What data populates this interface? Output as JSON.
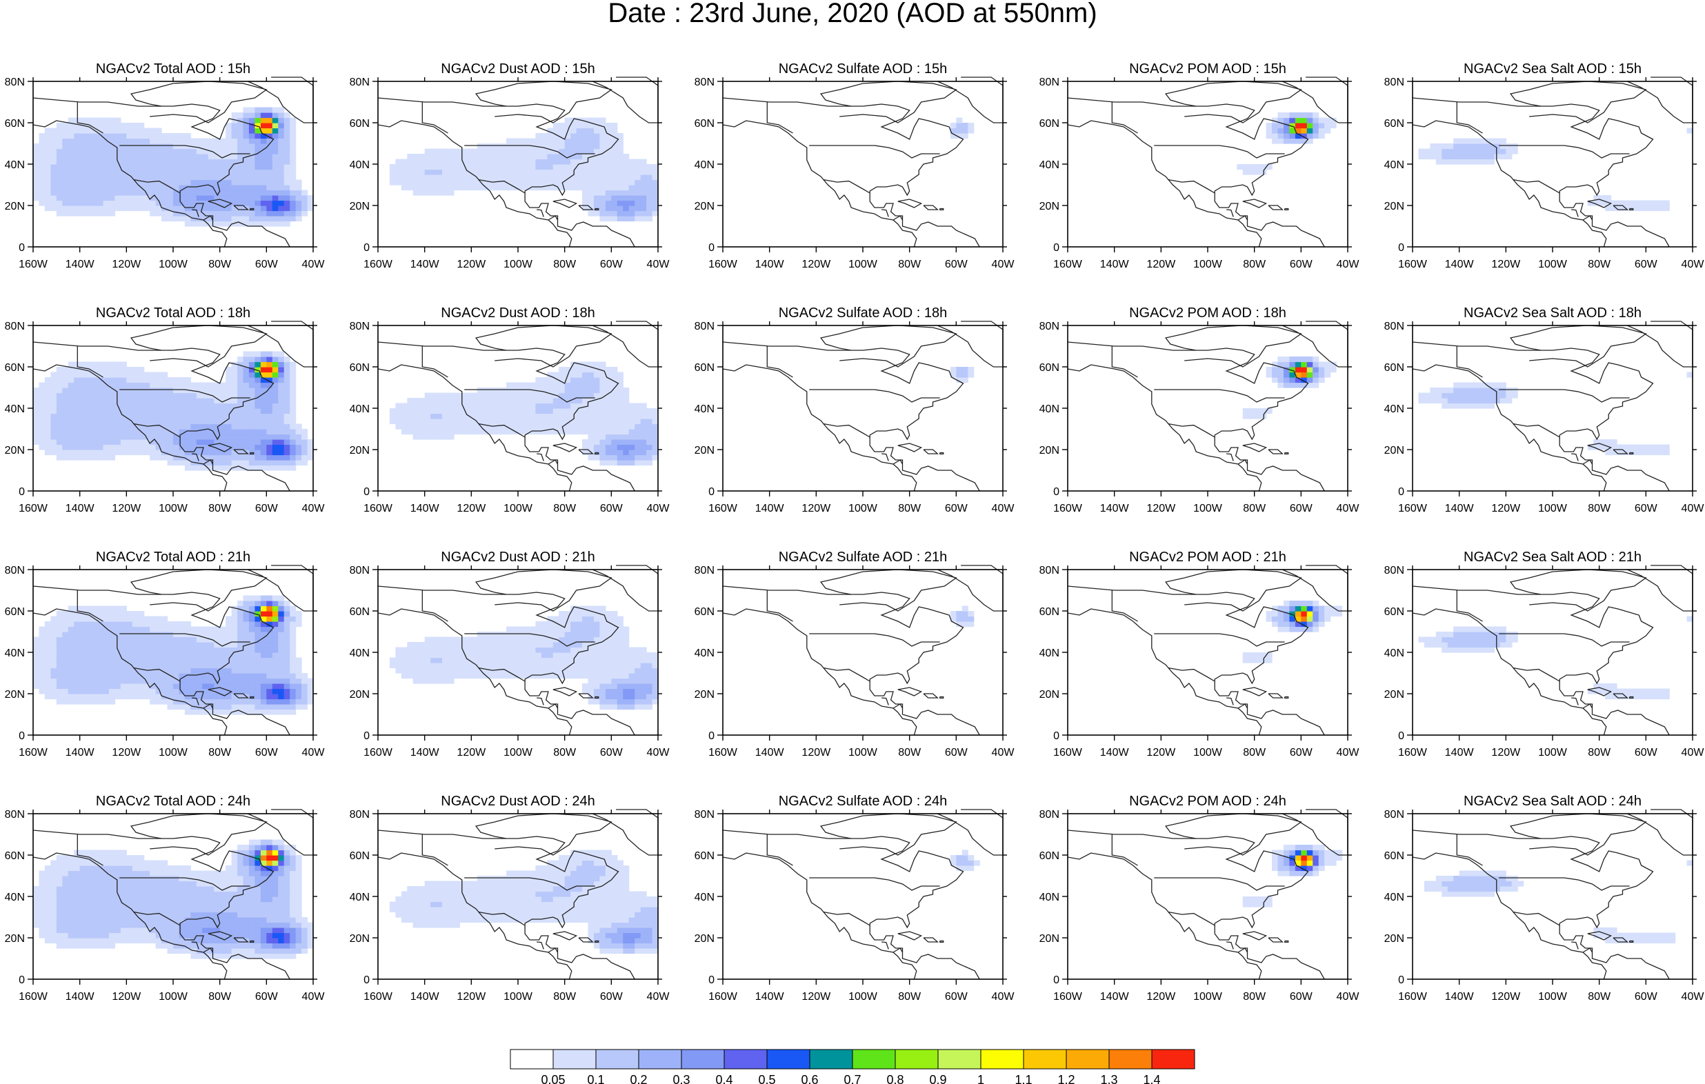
{
  "title": "Date : 23rd June, 2020 (AOD at 550nm)",
  "chart_data": {
    "type": "heatmap",
    "layout": {
      "rows": 4,
      "columns": 5
    },
    "panels": [
      {
        "title": "NGACv2 Total AOD : 15h",
        "species": "total",
        "hour": 15
      },
      {
        "title": "NGACv2 Dust AOD : 15h",
        "species": "dust",
        "hour": 15
      },
      {
        "title": "NGACv2 Sulfate AOD : 15h",
        "species": "sulfate",
        "hour": 15
      },
      {
        "title": "NGACv2 POM AOD : 15h",
        "species": "pom",
        "hour": 15
      },
      {
        "title": "NGACv2 Sea Salt AOD : 15h",
        "species": "seasalt",
        "hour": 15
      },
      {
        "title": "NGACv2 Total AOD : 18h",
        "species": "total",
        "hour": 18
      },
      {
        "title": "NGACv2 Dust AOD : 18h",
        "species": "dust",
        "hour": 18
      },
      {
        "title": "NGACv2 Sulfate AOD : 18h",
        "species": "sulfate",
        "hour": 18
      },
      {
        "title": "NGACv2 POM AOD : 18h",
        "species": "pom",
        "hour": 18
      },
      {
        "title": "NGACv2 Sea Salt AOD : 18h",
        "species": "seasalt",
        "hour": 18
      },
      {
        "title": "NGACv2 Total AOD : 21h",
        "species": "total",
        "hour": 21
      },
      {
        "title": "NGACv2 Dust AOD : 21h",
        "species": "dust",
        "hour": 21
      },
      {
        "title": "NGACv2 Sulfate AOD : 21h",
        "species": "sulfate",
        "hour": 21
      },
      {
        "title": "NGACv2 POM AOD : 21h",
        "species": "pom",
        "hour": 21
      },
      {
        "title": "NGACv2 Sea Salt AOD : 21h",
        "species": "seasalt",
        "hour": 21
      },
      {
        "title": "NGACv2 Total AOD : 24h",
        "species": "total",
        "hour": 24
      },
      {
        "title": "NGACv2 Dust AOD : 24h",
        "species": "dust",
        "hour": 24
      },
      {
        "title": "NGACv2 Sulfate AOD : 24h",
        "species": "sulfate",
        "hour": 24
      },
      {
        "title": "NGACv2 POM AOD : 24h",
        "species": "pom",
        "hour": 24
      },
      {
        "title": "NGACv2 Sea Salt  AOD : 24h",
        "species": "seasalt",
        "hour": 24
      }
    ],
    "x_axis": {
      "range": [
        -160,
        -40
      ],
      "ticks": [
        -160,
        -140,
        -120,
        -100,
        -80,
        -60,
        -40
      ],
      "tick_labels": [
        "160W",
        "140W",
        "120W",
        "100W",
        "80W",
        "60W",
        "40W"
      ]
    },
    "y_axis": {
      "range": [
        0,
        80
      ],
      "ticks": [
        0,
        20,
        40,
        60,
        80
      ],
      "tick_labels": [
        "0",
        "20N",
        "40N",
        "60N",
        "80N"
      ]
    },
    "colorbar": {
      "orientation": "horizontal",
      "placement": "bottom",
      "levels": [
        0.05,
        0.1,
        0.2,
        0.3,
        0.4,
        0.5,
        0.6,
        0.7,
        0.8,
        0.9,
        1,
        1.1,
        1.2,
        1.3,
        1.4
      ],
      "level_labels": [
        "0.05",
        "0.1",
        "0.2",
        "0.3",
        "0.4",
        "0.5",
        "0.6",
        "0.7",
        "0.8",
        "0.9",
        "1",
        "1.1",
        "1.2",
        "1.3",
        "1.4"
      ],
      "colors": [
        "#ffffff",
        "#d6e0fc",
        "#b9c8fa",
        "#9db2f8",
        "#8299f5",
        "#5f63ef",
        "#1a58f5",
        "#00939b",
        "#5fe41a",
        "#97f011",
        "#c6f55a",
        "#fdfe02",
        "#fcc804",
        "#fcaa05",
        "#fb7f08",
        "#f8260f"
      ]
    }
  }
}
